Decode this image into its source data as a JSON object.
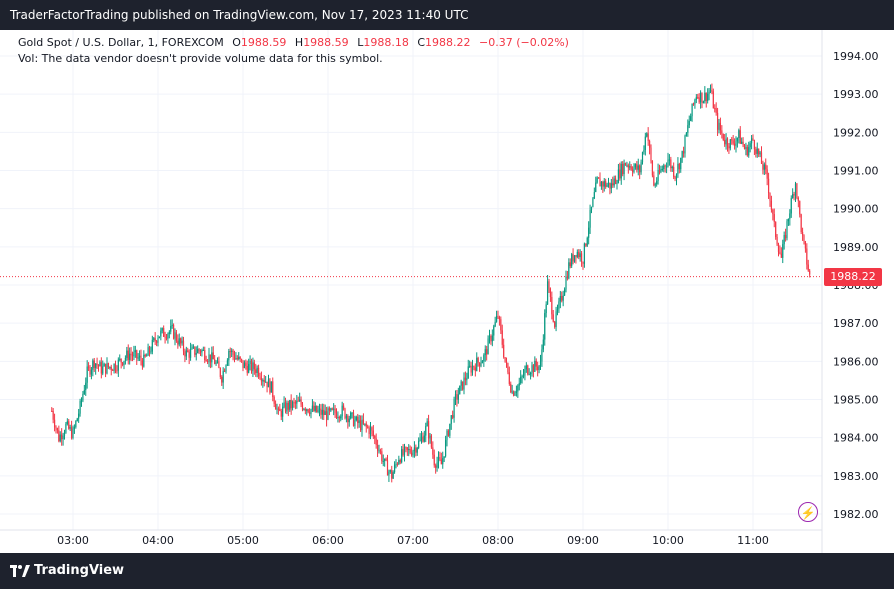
{
  "header": {
    "publisher_line": "TraderFactorTrading published on TradingView.com, Nov 17, 2023 11:40 UTC"
  },
  "legend": {
    "symbol": "Gold Spot / U.S. Dollar, 1, FOREXCOM",
    "open_label": "O",
    "open": "1988.59",
    "high_label": "H",
    "high": "1988.59",
    "low_label": "L",
    "low": "1988.18",
    "close_label": "C",
    "close": "1988.22",
    "change": "−0.37 (−0.02%)",
    "volume_note": "Vol: The data vendor doesn't provide volume data for this symbol."
  },
  "last_price_label": "1988.22",
  "footer": {
    "brand": "TradingView"
  },
  "icons": {
    "footer_logo": "tradingview-logo-icon",
    "alert": "lightning-icon"
  },
  "colors": {
    "up": "#089981",
    "down": "#f23645",
    "last_price": "#f23645",
    "alert": "#9c27b0"
  },
  "chart_data": {
    "type": "candlestick",
    "title": "Gold Spot / U.S. Dollar, 1, FOREXCOM",
    "x_ticks": [
      "03:00",
      "04:00",
      "05:00",
      "06:00",
      "07:00",
      "08:00",
      "09:00",
      "10:00",
      "11:00"
    ],
    "y_ticks": [
      "1982.00",
      "1983.00",
      "1984.00",
      "1985.00",
      "1986.00",
      "1987.00",
      "1988.00",
      "1989.00",
      "1990.00",
      "1991.00",
      "1992.00",
      "1993.00",
      "1994.00"
    ],
    "ylim": [
      1981.7,
      1994.6
    ],
    "last_price": 1988.22,
    "grid": true,
    "path_note": "approximate close prices per ~10 minutes from 02:45 to 11:40",
    "price_path": [
      [
        "02:45",
        1984.7
      ],
      [
        "02:50",
        1984.0
      ],
      [
        "02:55",
        1984.3
      ],
      [
        "03:00",
        1984.1
      ],
      [
        "03:05",
        1984.8
      ],
      [
        "03:10",
        1985.7
      ],
      [
        "03:15",
        1986.0
      ],
      [
        "03:20",
        1985.8
      ],
      [
        "03:30",
        1985.9
      ],
      [
        "03:40",
        1986.2
      ],
      [
        "03:50",
        1986.0
      ],
      [
        "04:00",
        1986.7
      ],
      [
        "04:10",
        1986.8
      ],
      [
        "04:20",
        1986.2
      ],
      [
        "04:30",
        1986.3
      ],
      [
        "04:40",
        1986.0
      ],
      [
        "04:45",
        1985.6
      ],
      [
        "04:50",
        1986.3
      ],
      [
        "05:00",
        1985.9
      ],
      [
        "05:10",
        1985.8
      ],
      [
        "05:20",
        1985.3
      ],
      [
        "05:25",
        1984.6
      ],
      [
        "05:30",
        1984.8
      ],
      [
        "05:40",
        1984.9
      ],
      [
        "05:50",
        1984.7
      ],
      [
        "06:00",
        1984.6
      ],
      [
        "06:10",
        1984.7
      ],
      [
        "06:20",
        1984.4
      ],
      [
        "06:30",
        1984.2
      ],
      [
        "06:35",
        1983.8
      ],
      [
        "06:40",
        1983.3
      ],
      [
        "06:45",
        1983.0
      ],
      [
        "06:50",
        1983.5
      ],
      [
        "07:00",
        1983.7
      ],
      [
        "07:05",
        1983.9
      ],
      [
        "07:10",
        1984.3
      ],
      [
        "07:15",
        1983.4
      ],
      [
        "07:20",
        1983.3
      ],
      [
        "07:25",
        1984.2
      ],
      [
        "07:30",
        1985.0
      ],
      [
        "07:35",
        1985.4
      ],
      [
        "07:40",
        1985.8
      ],
      [
        "07:50",
        1986.1
      ],
      [
        "08:00",
        1987.2
      ],
      [
        "08:05",
        1986.0
      ],
      [
        "08:10",
        1985.2
      ],
      [
        "08:15",
        1985.4
      ],
      [
        "08:20",
        1985.8
      ],
      [
        "08:30",
        1985.9
      ],
      [
        "08:35",
        1988.0
      ],
      [
        "08:40",
        1987.0
      ],
      [
        "08:45",
        1987.7
      ],
      [
        "08:50",
        1988.5
      ],
      [
        "08:55",
        1988.9
      ],
      [
        "09:00",
        1988.7
      ],
      [
        "09:05",
        1989.8
      ],
      [
        "09:10",
        1990.7
      ],
      [
        "09:20",
        1990.6
      ],
      [
        "09:30",
        1991.2
      ],
      [
        "09:40",
        1991.0
      ],
      [
        "09:45",
        1992.1
      ],
      [
        "09:50",
        1990.6
      ],
      [
        "09:55",
        1991.0
      ],
      [
        "10:00",
        1991.3
      ],
      [
        "10:05",
        1990.9
      ],
      [
        "10:10",
        1991.4
      ],
      [
        "10:15",
        1992.3
      ],
      [
        "10:20",
        1993.0
      ],
      [
        "10:25",
        1992.9
      ],
      [
        "10:30",
        1993.1
      ],
      [
        "10:35",
        1992.2
      ],
      [
        "10:40",
        1991.8
      ],
      [
        "10:45",
        1991.7
      ],
      [
        "10:50",
        1991.9
      ],
      [
        "10:55",
        1991.5
      ],
      [
        "11:00",
        1991.8
      ],
      [
        "11:05",
        1991.3
      ],
      [
        "11:10",
        1990.8
      ],
      [
        "11:15",
        1989.5
      ],
      [
        "11:20",
        1988.7
      ],
      [
        "11:25",
        1989.8
      ],
      [
        "11:30",
        1990.7
      ],
      [
        "11:35",
        1989.2
      ],
      [
        "11:40",
        1988.22
      ]
    ]
  }
}
